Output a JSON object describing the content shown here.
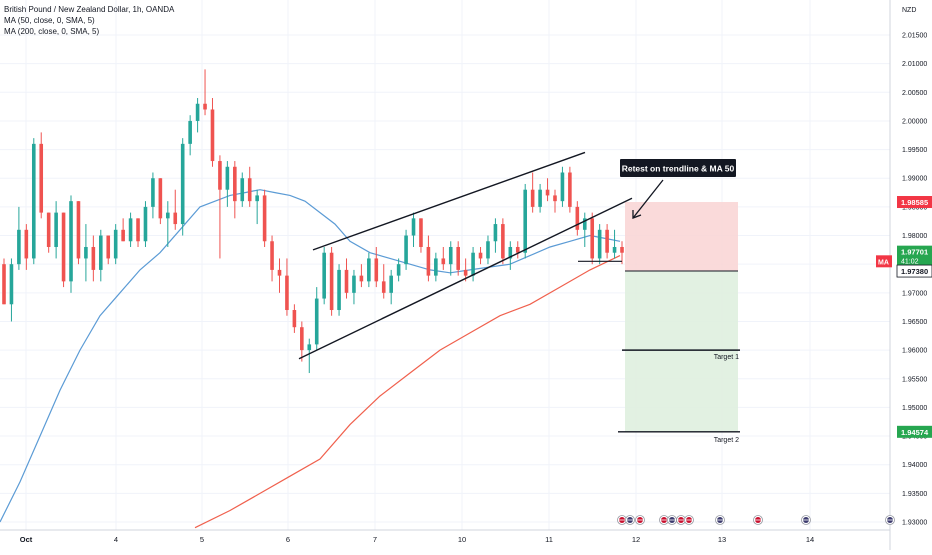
{
  "legend": {
    "title": "British Pound / New Zealand Dollar, 1h, OANDA",
    "ma50": "MA (50, close, 0, SMA, 5)",
    "ma200": "MA (200, close, 0, SMA, 5)"
  },
  "annotation": {
    "text": "Retest on trendline & MA 50"
  },
  "colors": {
    "bull": "#26a69a",
    "bear": "#ef5350",
    "ma50": "#5b9bd5",
    "ma200": "#f0604d",
    "stop_zone": "#f9d3d3",
    "target_zone": "#dff0df",
    "label_red": "#f23645",
    "label_green": "#26a650",
    "label_dark": "#131722"
  },
  "chart_data": {
    "type": "line",
    "currency": "NZD",
    "x_ticks": [
      "Oct",
      "4",
      "5",
      "6",
      "7",
      "10",
      "11",
      "12",
      "13",
      "14"
    ],
    "y_ticks": [
      "2.01500",
      "2.01000",
      "2.00500",
      "2.00000",
      "1.99500",
      "1.99000",
      "1.98500",
      "1.98000",
      "1.97500",
      "1.97000",
      "1.96500",
      "1.96000",
      "1.95500",
      "1.95000",
      "1.94500",
      "1.94000",
      "1.93500",
      "1.93000"
    ],
    "ylim": [
      1.9285,
      2.0185
    ],
    "price_labels": {
      "stop": "1.98585",
      "current": "1.97701",
      "countdown": "41:02",
      "ma": "MA",
      "entry": "1.97380",
      "target2": "1.94574"
    },
    "levels": {
      "stop": 1.98585,
      "entry": 1.9738,
      "target1": 1.96,
      "target2": 1.94574
    },
    "target_labels": [
      "Target 1",
      "Target 2"
    ],
    "candles": [
      [
        1.975,
        1.976,
        1.968,
        1.968
      ],
      [
        1.968,
        1.976,
        1.965,
        1.975
      ],
      [
        1.975,
        1.985,
        1.974,
        1.981
      ],
      [
        1.981,
        1.982,
        1.974,
        1.976
      ],
      [
        1.976,
        1.997,
        1.975,
        1.996
      ],
      [
        1.996,
        1.998,
        1.983,
        1.984
      ],
      [
        1.984,
        1.984,
        1.977,
        1.978
      ],
      [
        1.978,
        1.986,
        1.976,
        1.984
      ],
      [
        1.984,
        1.984,
        1.971,
        1.972
      ],
      [
        1.972,
        1.987,
        1.97,
        1.986
      ],
      [
        1.986,
        1.986,
        1.975,
        1.976
      ],
      [
        1.976,
        1.982,
        1.972,
        1.978
      ],
      [
        1.978,
        1.98,
        1.972,
        1.974
      ],
      [
        1.974,
        1.981,
        1.972,
        1.98
      ],
      [
        1.98,
        1.98,
        1.975,
        1.976
      ],
      [
        1.976,
        1.982,
        1.975,
        1.981
      ],
      [
        1.981,
        1.983,
        1.979,
        1.979
      ],
      [
        1.979,
        1.984,
        1.978,
        1.983
      ],
      [
        1.983,
        1.983,
        1.978,
        1.979
      ],
      [
        1.979,
        1.986,
        1.978,
        1.985
      ],
      [
        1.985,
        1.991,
        1.983,
        1.99
      ],
      [
        1.99,
        1.99,
        1.982,
        1.983
      ],
      [
        1.983,
        1.986,
        1.978,
        1.984
      ],
      [
        1.984,
        1.988,
        1.981,
        1.982
      ],
      [
        1.982,
        1.997,
        1.98,
        1.996
      ],
      [
        1.996,
        2.001,
        1.994,
        2.0
      ],
      [
        2.0,
        2.004,
        1.998,
        2.003
      ],
      [
        2.003,
        2.009,
        2.001,
        2.002
      ],
      [
        2.002,
        2.004,
        1.992,
        1.993
      ],
      [
        1.993,
        1.994,
        1.976,
        1.988
      ],
      [
        1.988,
        1.993,
        1.985,
        1.992
      ],
      [
        1.992,
        1.993,
        1.983,
        1.986
      ],
      [
        1.986,
        1.991,
        1.985,
        1.99
      ],
      [
        1.99,
        1.992,
        1.985,
        1.986
      ],
      [
        1.986,
        1.988,
        1.982,
        1.987
      ],
      [
        1.987,
        1.988,
        1.978,
        1.979
      ],
      [
        1.979,
        1.98,
        1.972,
        1.974
      ],
      [
        1.974,
        1.976,
        1.97,
        1.973
      ],
      [
        1.973,
        1.976,
        1.966,
        1.967
      ],
      [
        1.967,
        1.968,
        1.963,
        1.964
      ],
      [
        1.964,
        1.965,
        1.958,
        1.96
      ],
      [
        1.96,
        1.962,
        1.956,
        1.961
      ],
      [
        1.961,
        1.971,
        1.96,
        1.969
      ],
      [
        1.969,
        1.978,
        1.968,
        1.977
      ],
      [
        1.977,
        1.978,
        1.966,
        1.967
      ],
      [
        1.967,
        1.975,
        1.966,
        1.974
      ],
      [
        1.974,
        1.976,
        1.969,
        1.97
      ],
      [
        1.97,
        1.974,
        1.968,
        1.973
      ],
      [
        1.973,
        1.975,
        1.971,
        1.972
      ],
      [
        1.972,
        1.977,
        1.971,
        1.976
      ],
      [
        1.976,
        1.978,
        1.971,
        1.972
      ],
      [
        1.972,
        1.975,
        1.969,
        1.97
      ],
      [
        1.97,
        1.974,
        1.968,
        1.973
      ],
      [
        1.973,
        1.976,
        1.972,
        1.975
      ],
      [
        1.975,
        1.981,
        1.974,
        1.98
      ],
      [
        1.98,
        1.984,
        1.978,
        1.983
      ],
      [
        1.983,
        1.983,
        1.977,
        1.978
      ],
      [
        1.978,
        1.98,
        1.972,
        1.973
      ],
      [
        1.973,
        1.977,
        1.972,
        1.976
      ],
      [
        1.976,
        1.978,
        1.974,
        1.975
      ],
      [
        1.975,
        1.979,
        1.973,
        1.978
      ],
      [
        1.978,
        1.979,
        1.973,
        1.974
      ],
      [
        1.974,
        1.976,
        1.972,
        1.973
      ],
      [
        1.973,
        1.978,
        1.972,
        1.977
      ],
      [
        1.977,
        1.978,
        1.975,
        1.976
      ],
      [
        1.976,
        1.98,
        1.975,
        1.979
      ],
      [
        1.979,
        1.983,
        1.977,
        1.982
      ],
      [
        1.982,
        1.983,
        1.975,
        1.976
      ],
      [
        1.976,
        1.979,
        1.974,
        1.978
      ],
      [
        1.978,
        1.979,
        1.976,
        1.977
      ],
      [
        1.977,
        1.989,
        1.976,
        1.988
      ],
      [
        1.988,
        1.991,
        1.984,
        1.985
      ],
      [
        1.985,
        1.989,
        1.984,
        1.988
      ],
      [
        1.988,
        1.99,
        1.986,
        1.987
      ],
      [
        1.987,
        1.988,
        1.984,
        1.986
      ],
      [
        1.986,
        1.992,
        1.985,
        1.991
      ],
      [
        1.991,
        1.992,
        1.984,
        1.985
      ],
      [
        1.985,
        1.986,
        1.98,
        1.981
      ],
      [
        1.981,
        1.984,
        1.978,
        1.983
      ],
      [
        1.983,
        1.984,
        1.975,
        1.976
      ],
      [
        1.976,
        1.982,
        1.975,
        1.981
      ],
      [
        1.981,
        1.982,
        1.976,
        1.977
      ],
      [
        1.977,
        1.981,
        1.976,
        1.978
      ],
      [
        1.978,
        1.979,
        1.975,
        1.977
      ]
    ],
    "ma50": [
      [
        0,
        1.93
      ],
      [
        20,
        1.937
      ],
      [
        40,
        1.945
      ],
      [
        60,
        1.953
      ],
      [
        80,
        1.96
      ],
      [
        100,
        1.966
      ],
      [
        120,
        1.97
      ],
      [
        140,
        1.974
      ],
      [
        160,
        1.977
      ],
      [
        180,
        1.981
      ],
      [
        200,
        1.985
      ],
      [
        215,
        1.986
      ],
      [
        230,
        1.987
      ],
      [
        245,
        1.9875
      ],
      [
        260,
        1.988
      ],
      [
        275,
        1.9875
      ],
      [
        290,
        1.987
      ],
      [
        305,
        1.986
      ],
      [
        320,
        1.984
      ],
      [
        335,
        1.982
      ],
      [
        350,
        1.979
      ],
      [
        370,
        1.977
      ],
      [
        390,
        1.976
      ],
      [
        410,
        1.975
      ],
      [
        430,
        1.974
      ],
      [
        450,
        1.9735
      ],
      [
        470,
        1.974
      ],
      [
        490,
        1.9745
      ],
      [
        510,
        1.975
      ],
      [
        530,
        1.9765
      ],
      [
        550,
        1.978
      ],
      [
        570,
        1.979
      ],
      [
        590,
        1.98
      ],
      [
        605,
        1.9795
      ],
      [
        620,
        1.979
      ]
    ],
    "ma200": [
      [
        195,
        1.929
      ],
      [
        230,
        1.932
      ],
      [
        260,
        1.935
      ],
      [
        290,
        1.938
      ],
      [
        320,
        1.941
      ],
      [
        350,
        1.947
      ],
      [
        380,
        1.952
      ],
      [
        410,
        1.956
      ],
      [
        440,
        1.96
      ],
      [
        470,
        1.963
      ],
      [
        500,
        1.966
      ],
      [
        530,
        1.968
      ],
      [
        560,
        1.971
      ],
      [
        590,
        1.974
      ],
      [
        620,
        1.9765
      ]
    ],
    "channel_upper": [
      [
        313,
        1.9775
      ],
      [
        585,
        1.9945
      ]
    ],
    "channel_lower": [
      [
        299,
        1.9585
      ],
      [
        632,
        1.9865
      ]
    ],
    "support_line": [
      [
        578,
        1.9755
      ],
      [
        622,
        1.9755
      ]
    ]
  }
}
